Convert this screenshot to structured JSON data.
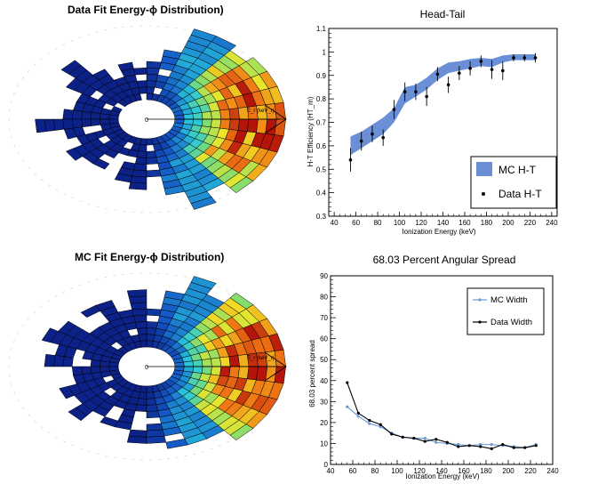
{
  "polar_top": {
    "title": "Data Fit Energy-ϕ Distribution)",
    "axis_label": "E_r (keV_r)",
    "origin_label": "0"
  },
  "polar_bottom": {
    "title": "MC Fit Energy-ϕ Distribution)",
    "axis_label": "E_r (keV_r)",
    "origin_label": "0"
  },
  "chart_data": [
    {
      "type": "line",
      "title": "Head-Tail",
      "xlabel": "Ionization Energy (keV)",
      "ylabel": "H-T Efficiency (HT_m)",
      "xlim": [
        35,
        245
      ],
      "ylim": [
        0.3,
        1.1
      ],
      "xticks": [
        40,
        60,
        80,
        100,
        120,
        140,
        160,
        180,
        200,
        220,
        240
      ],
      "yticks": [
        0.3,
        0.4,
        0.5,
        0.6,
        0.7,
        0.8,
        0.9,
        1,
        1.1
      ],
      "legend": [
        "MC H-T",
        "Data H-T"
      ],
      "legend_position": "bottom-right",
      "series": [
        {
          "name": "MC H-T",
          "style": "band",
          "color": "#6b8fd6",
          "x": [
            55,
            65,
            75,
            85,
            95,
            105,
            115,
            125,
            135,
            145,
            155,
            165,
            175,
            185,
            195,
            205,
            215,
            225
          ],
          "y_low": [
            0.56,
            0.59,
            0.62,
            0.65,
            0.7,
            0.78,
            0.81,
            0.84,
            0.88,
            0.91,
            0.92,
            0.93,
            0.94,
            0.935,
            0.955,
            0.965,
            0.965,
            0.965
          ],
          "y_high": [
            0.64,
            0.66,
            0.69,
            0.72,
            0.76,
            0.85,
            0.86,
            0.89,
            0.93,
            0.955,
            0.96,
            0.97,
            0.975,
            0.97,
            0.985,
            0.99,
            0.99,
            0.99
          ]
        },
        {
          "name": "Data H-T",
          "style": "points",
          "color": "#000000",
          "x": [
            55,
            65,
            75,
            85,
            95,
            105,
            115,
            125,
            135,
            145,
            155,
            165,
            175,
            185,
            195,
            205,
            215,
            225
          ],
          "y": [
            0.54,
            0.62,
            0.65,
            0.635,
            0.755,
            0.83,
            0.83,
            0.81,
            0.905,
            0.86,
            0.91,
            0.93,
            0.96,
            0.925,
            0.92,
            0.975,
            0.975,
            0.975
          ],
          "err": [
            0.05,
            0.04,
            0.035,
            0.035,
            0.04,
            0.04,
            0.035,
            0.04,
            0.03,
            0.035,
            0.03,
            0.03,
            0.025,
            0.04,
            0.04,
            0.015,
            0.015,
            0.02
          ]
        }
      ]
    },
    {
      "type": "line",
      "title": "68.03 Percent Angular Spread",
      "xlabel": "Ionization Energy (keV)",
      "ylabel": "68.03 percent spread",
      "xlim": [
        40,
        240
      ],
      "ylim": [
        0,
        90
      ],
      "xticks": [
        40,
        60,
        80,
        100,
        120,
        140,
        160,
        180,
        200,
        220,
        240
      ],
      "yticks": [
        0,
        10,
        20,
        30,
        40,
        50,
        60,
        70,
        80,
        90
      ],
      "legend": [
        "MC Width",
        "Data Width"
      ],
      "legend_position": "top-right",
      "series": [
        {
          "name": "MC Width",
          "color": "#6b9bd6",
          "x": [
            55,
            65,
            75,
            85,
            95,
            105,
            115,
            125,
            135,
            145,
            155,
            165,
            175,
            185,
            195,
            205,
            215,
            225
          ],
          "y": [
            27.5,
            23,
            19.5,
            18,
            15,
            13,
            12.5,
            12.5,
            10.5,
            10,
            9.5,
            9,
            9.5,
            9.5,
            9,
            8.5,
            8,
            9.5
          ]
        },
        {
          "name": "Data Width",
          "color": "#000000",
          "x": [
            55,
            65,
            75,
            85,
            95,
            105,
            115,
            125,
            135,
            145,
            155,
            165,
            175,
            185,
            195,
            205,
            215,
            225
          ],
          "y": [
            39,
            24.5,
            21,
            19,
            14.5,
            13,
            12.5,
            11,
            12,
            10.5,
            8.5,
            9,
            8.5,
            7.5,
            9.5,
            8,
            8,
            9
          ]
        }
      ]
    }
  ]
}
